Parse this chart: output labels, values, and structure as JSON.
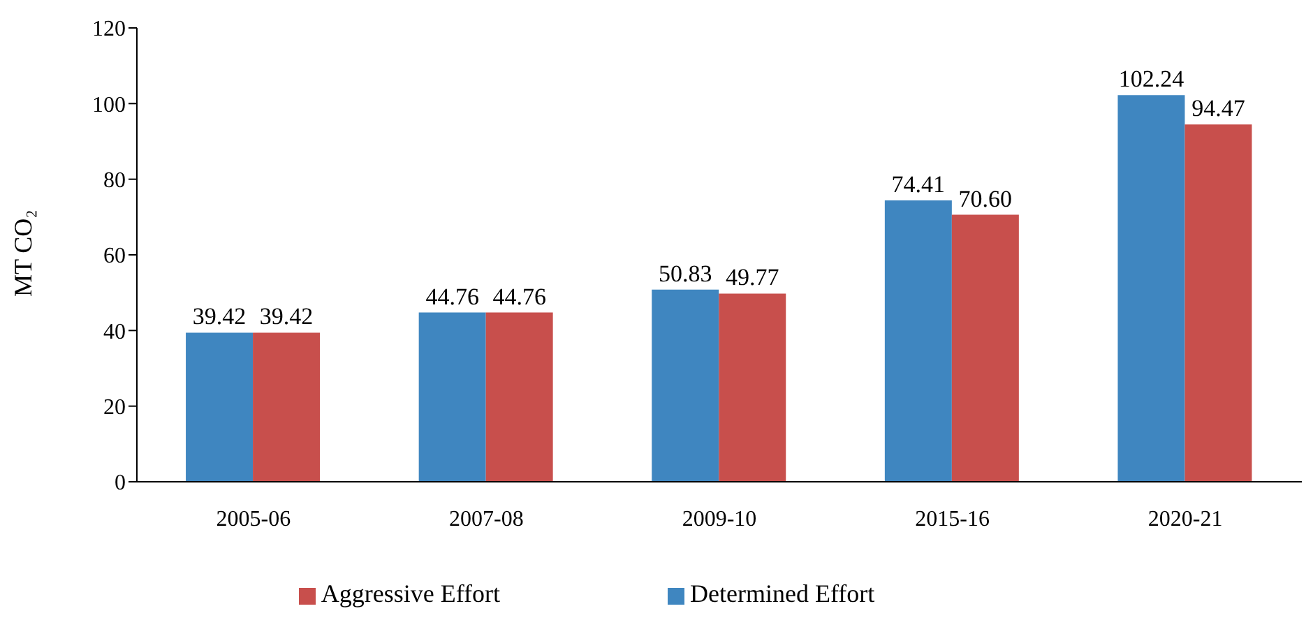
{
  "chart_data": {
    "type": "bar",
    "categories": [
      "2005-06",
      "2007-08",
      "2009-10",
      "2015-16",
      "2020-21"
    ],
    "series": [
      {
        "name": "Determined Effort",
        "color": "#3f86c0",
        "values": [
          39.42,
          44.76,
          50.83,
          74.41,
          102.24
        ],
        "value_labels": [
          "39.42",
          "44.76",
          "50.83",
          "74.41",
          "102.24"
        ]
      },
      {
        "name": "Aggressive Effort",
        "color": "#c84f4c",
        "values": [
          39.42,
          44.76,
          49.77,
          70.6,
          94.47
        ],
        "value_labels": [
          "39.42",
          "44.76",
          "49.77",
          "70.60",
          "94.47"
        ]
      }
    ],
    "ylabel": "MT CO₂",
    "ylim": [
      0,
      120
    ],
    "yticks": [
      0,
      20,
      40,
      60,
      80,
      100,
      120
    ],
    "grid": false,
    "legend": "bottom"
  }
}
